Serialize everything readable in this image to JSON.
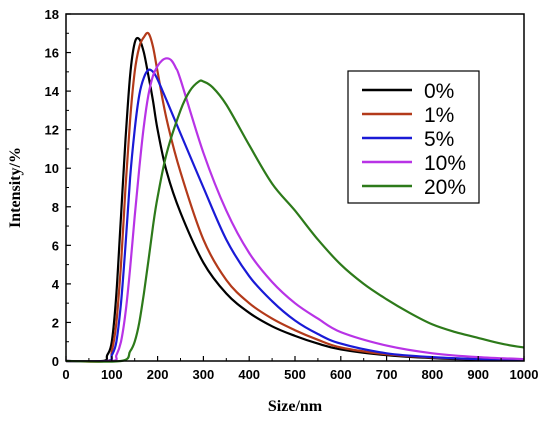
{
  "chart_data": {
    "type": "line",
    "title": "",
    "xlabel": "Size/nm",
    "ylabel": "Intensity/%",
    "xlim": [
      0,
      1000
    ],
    "ylim": [
      0,
      18
    ],
    "xticks": [
      "0",
      "100",
      "200",
      "300",
      "400",
      "500",
      "600",
      "700",
      "800",
      "900",
      "1000"
    ],
    "yticks": [
      "0",
      "2",
      "4",
      "6",
      "8",
      "10",
      "12",
      "14",
      "16",
      "18"
    ],
    "grid": false,
    "legend_position": "top-right",
    "series": [
      {
        "name": "0%",
        "color": "#000000",
        "x": [
          0,
          80,
          90,
          100,
          110,
          120,
          130,
          140,
          150,
          160,
          170,
          180,
          190,
          200,
          220,
          250,
          300,
          350,
          400,
          450,
          500,
          550,
          600,
          700,
          800,
          900,
          1000
        ],
        "y": [
          0,
          0,
          0.3,
          1.0,
          3.5,
          7.5,
          11.5,
          14.8,
          16.5,
          16.7,
          16.0,
          14.8,
          13.5,
          12.0,
          9.8,
          7.7,
          5.1,
          3.5,
          2.5,
          1.8,
          1.3,
          0.9,
          0.6,
          0.3,
          0.15,
          0.07,
          0.03
        ]
      },
      {
        "name": "1%",
        "color": "#b33a1a",
        "x": [
          0,
          90,
          100,
          110,
          120,
          130,
          140,
          150,
          160,
          170,
          180,
          190,
          200,
          220,
          250,
          300,
          350,
          400,
          450,
          500,
          550,
          600,
          700,
          800,
          900,
          1000
        ],
        "y": [
          0,
          0,
          0.5,
          2.0,
          5.0,
          9.0,
          12.5,
          15.0,
          16.3,
          16.8,
          17.0,
          16.3,
          15.0,
          12.5,
          9.8,
          6.3,
          4.2,
          3.0,
          2.2,
          1.6,
          1.1,
          0.7,
          0.35,
          0.18,
          0.1,
          0.05
        ]
      },
      {
        "name": "5%",
        "color": "#1a1ad6",
        "x": [
          0,
          90,
          100,
          110,
          120,
          130,
          140,
          150,
          160,
          170,
          180,
          190,
          200,
          220,
          250,
          300,
          350,
          400,
          450,
          500,
          550,
          600,
          700,
          800,
          900,
          1000
        ],
        "y": [
          0,
          0,
          0.3,
          1.0,
          3.0,
          6.0,
          9.5,
          12.0,
          13.8,
          14.7,
          15.1,
          15.0,
          14.6,
          13.5,
          11.8,
          9.0,
          6.3,
          4.4,
          3.1,
          2.1,
          1.4,
          0.9,
          0.4,
          0.2,
          0.1,
          0.05
        ]
      },
      {
        "name": "10%",
        "color": "#b833e6",
        "x": [
          0,
          100,
          110,
          120,
          130,
          140,
          150,
          160,
          170,
          180,
          190,
          200,
          210,
          220,
          230,
          240,
          250,
          300,
          350,
          400,
          450,
          500,
          550,
          600,
          700,
          800,
          900,
          1000
        ],
        "y": [
          0,
          0,
          0.3,
          1.0,
          2.5,
          4.8,
          7.5,
          10.0,
          12.2,
          13.8,
          14.8,
          15.3,
          15.6,
          15.7,
          15.6,
          15.2,
          14.6,
          10.8,
          7.8,
          5.6,
          4.1,
          3.0,
          2.2,
          1.5,
          0.8,
          0.4,
          0.2,
          0.1
        ]
      },
      {
        "name": "20%",
        "color": "#2d7a1a",
        "x": [
          0,
          120,
          140,
          150,
          160,
          170,
          180,
          190,
          200,
          220,
          250,
          270,
          290,
          300,
          320,
          350,
          400,
          450,
          500,
          550,
          600,
          650,
          700,
          750,
          800,
          850,
          900,
          950,
          1000
        ],
        "y": [
          0,
          0,
          0.5,
          1.0,
          2.0,
          3.5,
          5.2,
          7.0,
          8.5,
          10.8,
          13.0,
          14.0,
          14.5,
          14.5,
          14.2,
          13.3,
          11.2,
          9.2,
          7.8,
          6.3,
          5.0,
          4.0,
          3.2,
          2.5,
          1.9,
          1.5,
          1.2,
          0.9,
          0.7
        ]
      }
    ]
  }
}
